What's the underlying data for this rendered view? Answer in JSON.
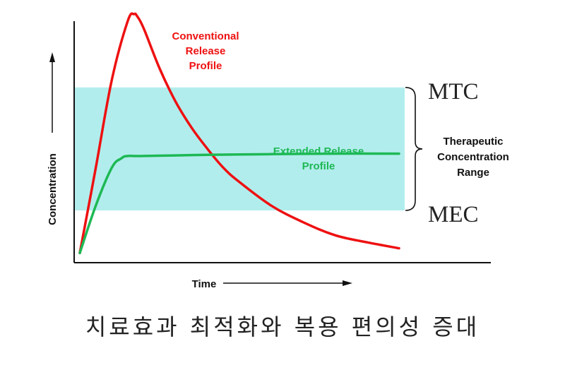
{
  "chart_data": {
    "type": "line",
    "xlabel": "Time",
    "ylabel": "Concentration",
    "xlim": [
      0,
      100
    ],
    "ylim": [
      0,
      100
    ],
    "therapeutic_range": {
      "upper": 72,
      "lower": 20,
      "upper_label": "MTC",
      "lower_label": "MEC",
      "bracket_label": [
        "Therapeutic",
        "Concentration",
        "Range"
      ],
      "color": "#b2eded"
    },
    "series": [
      {
        "name": "Conventional Release Profile",
        "label_lines": [
          "Conventional",
          "Release",
          "Profile"
        ],
        "color": "#ee1111",
        "x": [
          0,
          5,
          10,
          15,
          17,
          18,
          20,
          25,
          30,
          35,
          40,
          45,
          50,
          60,
          70,
          80,
          90,
          100
        ],
        "y": [
          2,
          38,
          75,
          100,
          103,
          102,
          97,
          80,
          66,
          55,
          46,
          38,
          32,
          22,
          15,
          9.5,
          6.5,
          4
        ]
      },
      {
        "name": "Extended Release Profile",
        "label_lines": [
          "Extended Release",
          "Profile"
        ],
        "color": "#1db954",
        "x": [
          0,
          5,
          10,
          13,
          15,
          20,
          40,
          60,
          80,
          100
        ],
        "y": [
          2,
          22,
          38,
          42,
          43,
          43,
          43.5,
          43.8,
          44,
          44
        ]
      }
    ]
  },
  "caption": "치료효과 최적화와 복용 편의성 증대"
}
